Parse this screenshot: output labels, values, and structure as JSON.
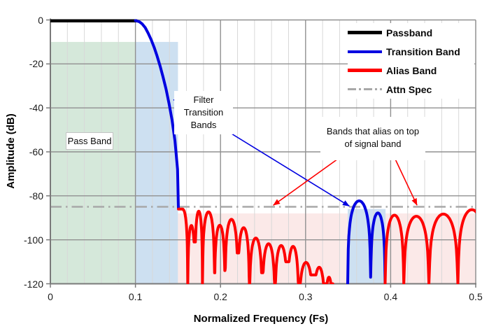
{
  "chart_data": {
    "type": "line",
    "title": "",
    "xlabel": "Normalized Frequency (Fs)",
    "ylabel": "Amplitude (dB)",
    "xlim": [
      0,
      0.5
    ],
    "ylim": [
      -120,
      0
    ],
    "grid": true,
    "x_minor_step": 0.02,
    "x_ticks": [
      {
        "value": 0,
        "label": "0"
      },
      {
        "value": 0.1,
        "label": "0.1"
      },
      {
        "value": 0.2,
        "label": "0.2"
      },
      {
        "value": 0.3,
        "label": "0.3"
      },
      {
        "value": 0.4,
        "label": "0.4"
      },
      {
        "value": 0.5,
        "label": "0.5"
      }
    ],
    "y_ticks": [
      {
        "value": 0,
        "label": "0"
      },
      {
        "value": -20,
        "label": "-20"
      },
      {
        "value": -40,
        "label": "-40"
      },
      {
        "value": -60,
        "label": "-60"
      },
      {
        "value": -80,
        "label": "-80"
      },
      {
        "value": -100,
        "label": "-100"
      },
      {
        "value": -120,
        "label": "-120"
      }
    ],
    "attn_spec": {
      "label": "Attn Spec",
      "level_db": -85
    },
    "bands": [
      {
        "name": "pass-band-region",
        "x0": 0,
        "x1": 0.1,
        "top_db": -10,
        "color": "#d5e8da"
      },
      {
        "name": "transition-band-region-1",
        "x0": 0.1,
        "x1": 0.15,
        "top_db": -10,
        "color": "#cde0f1"
      },
      {
        "name": "alias-band-region",
        "x0": 0.15,
        "x1": 0.5,
        "top_db": -88,
        "color": "#fbe9e8"
      },
      {
        "name": "transition-band-region-2",
        "x0": 0.3495,
        "x1": 0.394,
        "top_db": -86,
        "color": "#cde0f1"
      }
    ],
    "series": [
      {
        "name": "Passband",
        "color": "#000000",
        "type": "flat",
        "db": -0.4,
        "x0": 0,
        "x1": 0.101,
        "width": 4.5
      },
      {
        "name": "Transition Band",
        "color": "#0000e0",
        "type": "points",
        "width": 4,
        "points": [
          [
            0.1,
            -0.3
          ],
          [
            0.1045,
            -0.8
          ],
          [
            0.108,
            -1.8
          ],
          [
            0.1115,
            -3.5
          ],
          [
            0.115,
            -6
          ],
          [
            0.1185,
            -9
          ],
          [
            0.122,
            -12.5
          ],
          [
            0.1255,
            -16.5
          ],
          [
            0.129,
            -21
          ],
          [
            0.1325,
            -26
          ],
          [
            0.136,
            -31.5
          ],
          [
            0.1395,
            -38
          ],
          [
            0.143,
            -45.5
          ],
          [
            0.1465,
            -55
          ],
          [
            0.1495,
            -68
          ],
          [
            0.1505,
            -85.5
          ]
        ]
      },
      {
        "name": "Alias Band",
        "color": "#fe0000",
        "type": "lobes",
        "width": 4,
        "lobes": [
          [
            0.1505,
            0.1615,
            -86.3,
            -86,
            -120
          ],
          [
            0.1615,
            0.17,
            -93.5,
            -120,
            -101
          ],
          [
            0.17,
            0.1788,
            -87.0,
            -101,
            -120
          ],
          [
            0.1788,
            0.193,
            -87.3,
            -120,
            -115
          ],
          [
            0.193,
            0.2053,
            -93.4,
            -115,
            -114
          ],
          [
            0.2053,
            0.2204,
            -90.7,
            -114,
            -106
          ],
          [
            0.2204,
            0.234,
            -94.5,
            -106,
            -120
          ],
          [
            0.234,
            0.249,
            -99.2,
            -120,
            -115
          ],
          [
            0.249,
            0.264,
            -101.8,
            -115,
            -120
          ],
          [
            0.264,
            0.2786,
            -102.6,
            -120,
            -110
          ],
          [
            0.2786,
            0.292,
            -103.0,
            -110,
            -120
          ],
          [
            0.292,
            0.309,
            -110.3,
            -120,
            -116
          ],
          [
            0.309,
            0.323,
            -112.5,
            -116,
            -120
          ],
          [
            0.323,
            0.332,
            -117.0,
            -120,
            -120
          ]
        ]
      },
      {
        "name": "Transition Band",
        "color": "#0000e0",
        "type": "lobes",
        "width": 4,
        "lobes": [
          [
            0.3495,
            0.3765,
            -82.3,
            -120,
            -117
          ],
          [
            0.3765,
            0.3935,
            -87.8,
            -117,
            -120
          ]
        ]
      },
      {
        "name": "Alias Band",
        "color": "#fe0000",
        "type": "lobes",
        "width": 4,
        "lobes": [
          [
            0.3935,
            0.4155,
            -88.8,
            -120,
            -120
          ],
          [
            0.4155,
            0.445,
            -89.3,
            -120,
            -120
          ],
          [
            0.445,
            0.479,
            -88.3,
            -120,
            -120
          ],
          [
            0.479,
            0.512,
            -86.3,
            -120,
            -115
          ]
        ]
      }
    ]
  },
  "legend": {
    "items": [
      {
        "label": "Passband",
        "color": "#000000",
        "style": "solid",
        "thickness": 5
      },
      {
        "label": "Transition Band",
        "color": "#0000e0",
        "style": "solid",
        "thickness": 4
      },
      {
        "label": "Alias Band",
        "color": "#fe0000",
        "style": "solid",
        "thickness": 5
      },
      {
        "label": "Attn Spec",
        "color": "#a8a8a8",
        "style": "dashdot",
        "thickness": 3
      }
    ]
  },
  "annotations": {
    "pass_band": {
      "text": "Pass Band"
    },
    "filter_transition": {
      "lines": [
        "Filter",
        "Transition",
        "Bands"
      ],
      "targets": [
        {
          "x": 0.1439,
          "db": -36.4
        },
        {
          "x": 0.3515,
          "db": -84.7
        }
      ]
    },
    "alias_note": {
      "lines": [
        "Bands that alias on top",
        "of signal band"
      ],
      "targets": [
        {
          "x": 0.262,
          "db": -84.3
        },
        {
          "x": 0.431,
          "db": -84.3
        }
      ]
    }
  },
  "colors": {
    "grid_major": "#909090",
    "grid_minor": "#d8d8d8",
    "axis": "#7a7a7a",
    "attn_spec": "#a8a8a8",
    "arrow_blue": "#0000e0",
    "arrow_red": "#fe0000"
  }
}
